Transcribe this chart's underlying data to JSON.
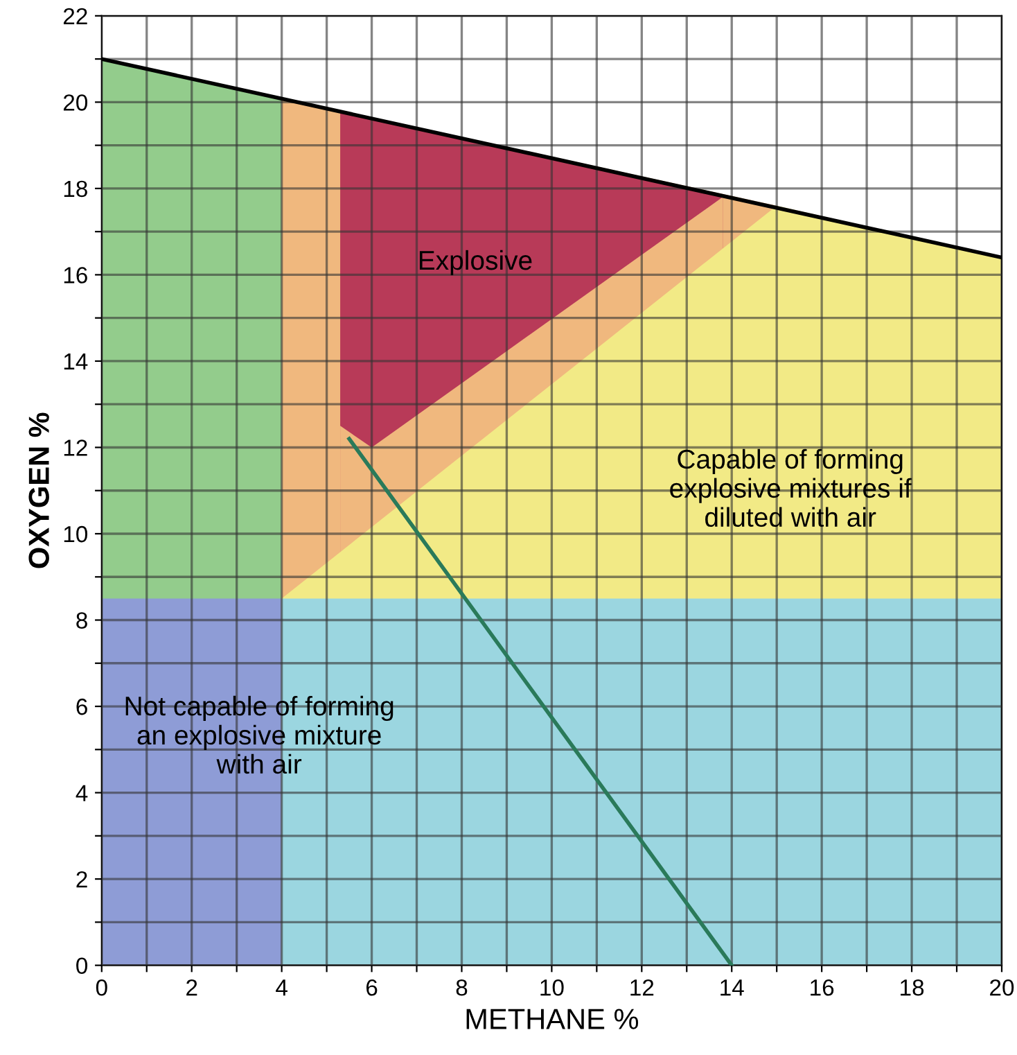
{
  "chart_data": {
    "type": "area",
    "xlabel": "METHANE %",
    "ylabel": "OXYGEN %",
    "xlim": [
      0,
      20
    ],
    "ylim": [
      0,
      22
    ],
    "xticks": [
      0,
      {
        "value": 1,
        "label": null
      },
      2,
      {
        "value": 3,
        "label": null
      },
      4,
      {
        "value": 5,
        "label": null
      },
      6,
      {
        "value": 7,
        "label": null
      },
      8,
      {
        "value": 9,
        "label": null
      },
      10,
      {
        "value": 11,
        "label": null
      },
      12,
      {
        "value": 13,
        "label": null
      },
      14,
      {
        "value": 15,
        "label": null
      },
      16,
      {
        "value": 17,
        "label": null
      },
      18,
      {
        "value": 19,
        "label": null
      },
      20
    ],
    "yticks": [
      0,
      {
        "value": 1,
        "label": null
      },
      2,
      {
        "value": 3,
        "label": null
      },
      4,
      {
        "value": 5,
        "label": null
      },
      6,
      {
        "value": 7,
        "label": null
      },
      8,
      {
        "value": 9,
        "label": null
      },
      10,
      {
        "value": 11,
        "label": null
      },
      12,
      {
        "value": 13,
        "label": null
      },
      14,
      {
        "value": 15,
        "label": null
      },
      16,
      {
        "value": 17,
        "label": null
      },
      18,
      {
        "value": 19,
        "label": null
      },
      20,
      {
        "value": 21,
        "label": null
      },
      22
    ],
    "grid": true,
    "series": [
      {
        "color": "#93cc8c",
        "x": [
          0,
          4
        ],
        "values": [
          21,
          20.1
        ]
      },
      {
        "color": "#f0b87e",
        "x": [
          4,
          15
        ],
        "values": [
          20.1,
          17.6
        ]
      },
      {
        "color": "#b83a58",
        "x": [
          5.3,
          6,
          13.8
        ],
        "values": [
          19.8,
          19.6,
          17.8
        ]
      },
      {
        "color": "#f0b87e",
        "x": [
          5.3,
          6,
          13.8
        ],
        "values": [
          12.5,
          12,
          17.8
        ]
      },
      {
        "color": "#f2ea86",
        "x": [
          4,
          15,
          20
        ],
        "values": [
          8.5,
          17.6,
          16.4
        ]
      },
      {
        "color": "#8e9cd6",
        "x": [
          0,
          4
        ],
        "values": [
          8.5,
          8.5
        ]
      },
      {
        "color": "#9bd6e0",
        "x": [
          4,
          20
        ],
        "values": [
          8.5,
          8.5
        ]
      },
      {
        "type": "line",
        "color": "#000000",
        "x": [
          0,
          20
        ],
        "values": [
          21,
          16.4
        ]
      },
      {
        "type": "line",
        "color": "#2a7a5a",
        "x": [
          5.5,
          14
        ],
        "values": [
          12.2,
          0
        ]
      }
    ],
    "annotations": [
      "Explosive",
      "Capable of forming\nexplosive mixtures if\ndiluted with air",
      "Not capable of forming\nan explosive mixture\nwith air"
    ]
  }
}
